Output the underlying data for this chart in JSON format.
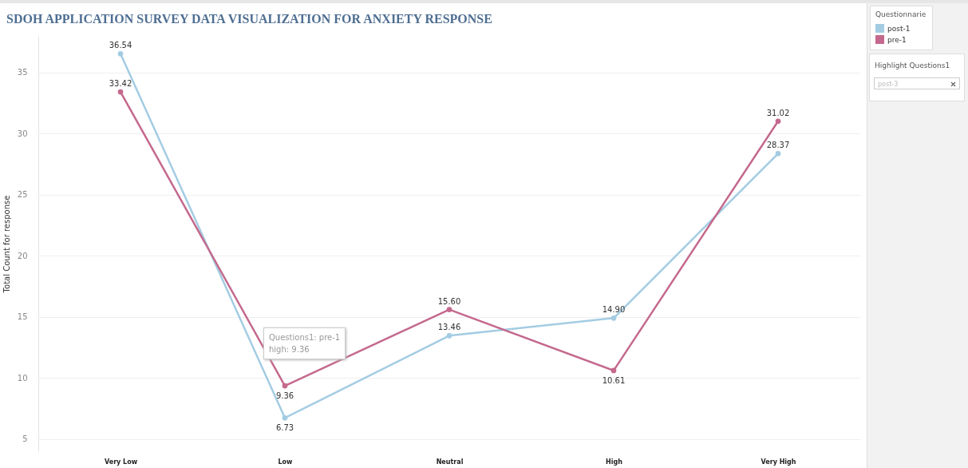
{
  "chart_data": {
    "type": "line",
    "title": "SDOH APPLICATION SURVEY DATA VISUALIZATION FOR ANXIETY RESPONSE",
    "ylabel": "Total Count for response",
    "legend_title": "Questionnarie",
    "categories": [
      "Very Low",
      "Low",
      "Neutral",
      "High",
      "Very High"
    ],
    "series": [
      {
        "name": "post-1",
        "color": "#a3cce3",
        "values": [
          36.54,
          6.73,
          13.46,
          14.9,
          28.37
        ],
        "value_labels": [
          "36.54",
          "6.73",
          "13.46",
          "14.90",
          "28.37"
        ]
      },
      {
        "name": "pre-1",
        "color": "#c4698d",
        "values": [
          33.42,
          9.36,
          15.6,
          10.61,
          31.02
        ],
        "value_labels": [
          "33.42",
          "9.36",
          "15.60",
          "10.61",
          "31.02"
        ]
      }
    ],
    "ylim": [
      4,
      38
    ],
    "yticks": [
      5,
      10,
      15,
      20,
      25,
      30,
      35
    ],
    "grid": "y",
    "legend": "top right",
    "marker": "circle",
    "line_style": "solid",
    "annotations": [
      "Questions1: pre-1\nhigh: 9.36",
      "Highlight Questions1",
      "post-3"
    ]
  }
}
